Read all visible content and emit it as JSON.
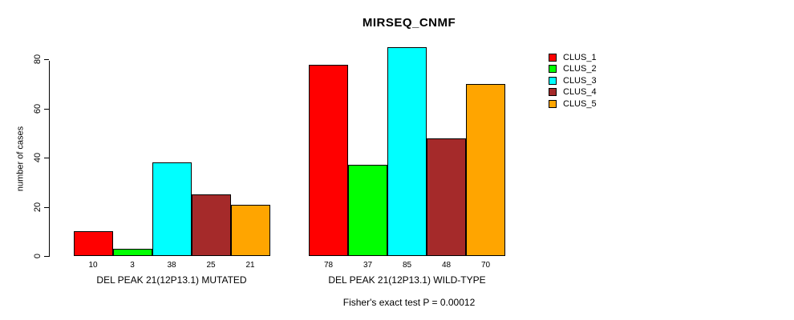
{
  "chart_data": {
    "type": "bar",
    "title": "MIRSEQ_CNMF",
    "ylabel": "number of cases",
    "xlabel": "",
    "yticks": [
      0,
      20,
      40,
      60,
      80
    ],
    "ylim": [
      0,
      85
    ],
    "grid": false,
    "legend_position": "right",
    "series": [
      "CLUS_1",
      "CLUS_2",
      "CLUS_3",
      "CLUS_4",
      "CLUS_5"
    ],
    "colors": [
      "#ff0000",
      "#00ff00",
      "#00ffff",
      "#a52a2a",
      "#ffa500"
    ],
    "groups": [
      {
        "label": "DEL PEAK 21(12P13.1) MUTATED",
        "values": [
          10,
          3,
          38,
          25,
          21
        ]
      },
      {
        "label": "DEL PEAK 21(12P13.1) WILD-TYPE",
        "values": [
          78,
          37,
          85,
          48,
          70
        ]
      }
    ],
    "annotation": "Fisher's exact test P = 0.00012"
  }
}
